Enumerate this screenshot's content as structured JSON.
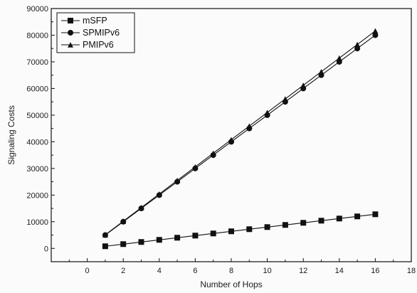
{
  "chart_data": {
    "type": "line",
    "title": "",
    "xlabel": "Number of Hops",
    "ylabel": "Signaling Costs",
    "xlim": [
      -2,
      18
    ],
    "ylim": [
      -5000,
      90000
    ],
    "x_ticks": [
      0,
      2,
      4,
      6,
      8,
      10,
      12,
      14,
      16,
      18
    ],
    "x_tick_labels": [
      "0",
      "2",
      "4",
      "6",
      "8",
      "10",
      "12",
      "14",
      "16",
      "18"
    ],
    "y_ticks": [
      0,
      10000,
      20000,
      30000,
      40000,
      50000,
      60000,
      70000,
      80000,
      90000
    ],
    "y_tick_labels": [
      "0",
      "10000",
      "20000",
      "30000",
      "40000",
      "50000",
      "60000",
      "70000",
      "80000",
      "90000"
    ],
    "grid": false,
    "legend_position": "top-left",
    "x": [
      1,
      2,
      3,
      4,
      5,
      6,
      7,
      8,
      9,
      10,
      11,
      12,
      13,
      14,
      15,
      16
    ],
    "series": [
      {
        "name": "mSFP",
        "marker": "square",
        "color": "#111111",
        "values": [
          800,
          1600,
          2400,
          3200,
          4000,
          4800,
          5600,
          6400,
          7200,
          8000,
          8800,
          9600,
          10400,
          11200,
          12000,
          12800
        ]
      },
      {
        "name": "SPMIPv6",
        "marker": "circle",
        "color": "#111111",
        "values": [
          5000,
          10000,
          15000,
          20000,
          25000,
          30000,
          35000,
          40000,
          45000,
          50000,
          55000,
          60000,
          65000,
          70000,
          75000,
          80000
        ]
      },
      {
        "name": "PMIPv6",
        "marker": "triangle",
        "color": "#111111",
        "values": [
          5100,
          10200,
          15300,
          20400,
          25500,
          30600,
          35700,
          40800,
          45900,
          51000,
          56100,
          61200,
          66300,
          71400,
          76500,
          81600
        ]
      }
    ]
  }
}
